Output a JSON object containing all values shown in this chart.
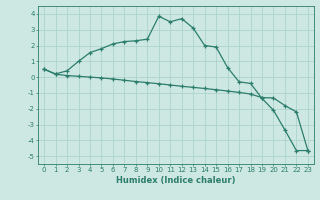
{
  "line1_x": [
    0,
    1,
    2,
    3,
    4,
    5,
    6,
    7,
    8,
    9,
    10,
    11,
    12,
    13,
    14,
    15,
    16,
    17,
    18,
    19,
    20,
    21,
    22,
    23
  ],
  "line1_y": [
    0.5,
    0.2,
    0.4,
    1.0,
    1.55,
    1.8,
    2.1,
    2.25,
    2.3,
    2.4,
    3.85,
    3.5,
    3.7,
    3.1,
    2.0,
    1.9,
    0.6,
    -0.3,
    -0.4,
    -1.35,
    -2.1,
    -3.35,
    -4.65,
    -4.65
  ],
  "line2_x": [
    0,
    1,
    2,
    3,
    4,
    5,
    6,
    7,
    8,
    9,
    10,
    11,
    12,
    13,
    14,
    15,
    16,
    17,
    18,
    19,
    20,
    21,
    22,
    23
  ],
  "line2_y": [
    0.5,
    0.18,
    0.1,
    0.05,
    0.0,
    -0.05,
    -0.12,
    -0.2,
    -0.28,
    -0.35,
    -0.42,
    -0.5,
    -0.58,
    -0.65,
    -0.72,
    -0.8,
    -0.88,
    -0.97,
    -1.07,
    -1.3,
    -1.32,
    -1.8,
    -2.2,
    -4.65
  ],
  "color": "#2d7d6c",
  "bg_color": "#cde8e3",
  "grid_color_major": "#aacfc9",
  "grid_color_minor": "#bddad5",
  "xlabel": "Humidex (Indice chaleur)",
  "ylim": [
    -5.5,
    4.5
  ],
  "xlim": [
    -0.5,
    23.5
  ],
  "yticks": [
    -5,
    -4,
    -3,
    -2,
    -1,
    0,
    1,
    2,
    3,
    4
  ],
  "xticks": [
    0,
    1,
    2,
    3,
    4,
    5,
    6,
    7,
    8,
    9,
    10,
    11,
    12,
    13,
    14,
    15,
    16,
    17,
    18,
    19,
    20,
    21,
    22,
    23
  ],
  "marker": "+"
}
